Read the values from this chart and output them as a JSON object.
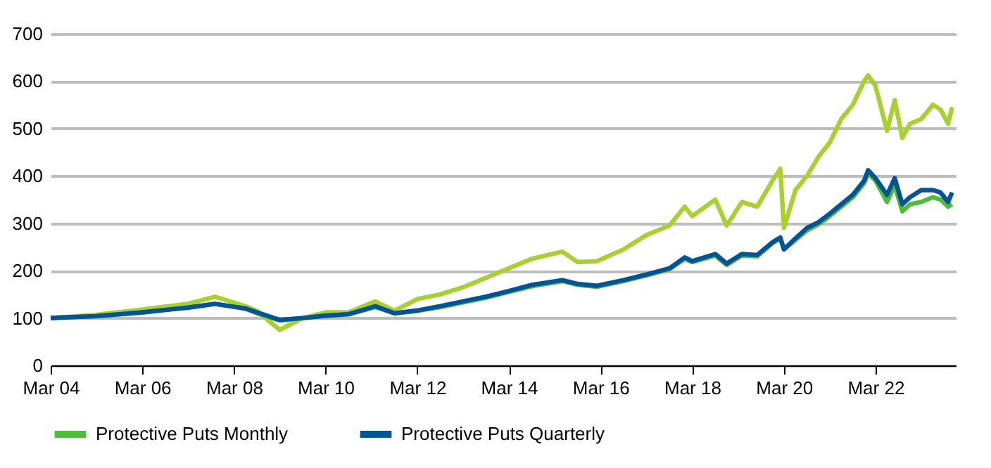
{
  "chart_data": {
    "type": "line",
    "x": [
      "2004-03",
      "2005-03",
      "2006-03",
      "2007-03",
      "2007-10",
      "2008-06",
      "2008-09",
      "2009-03",
      "2009-09",
      "2010-03",
      "2010-09",
      "2011-04",
      "2011-09",
      "2012-03",
      "2012-09",
      "2013-03",
      "2013-09",
      "2014-03",
      "2014-09",
      "2015-05",
      "2015-09",
      "2016-02",
      "2016-09",
      "2017-03",
      "2017-09",
      "2018-01",
      "2018-03",
      "2018-09",
      "2018-12",
      "2019-04",
      "2019-08",
      "2019-12",
      "2020-02",
      "2020-03",
      "2020-06",
      "2020-09",
      "2020-12",
      "2021-03",
      "2021-06",
      "2021-09",
      "2021-12",
      "2022-01",
      "2022-03",
      "2022-06",
      "2022-08",
      "2022-10",
      "2022-12",
      "2023-03",
      "2023-06",
      "2023-08",
      "2023-10",
      "2023-11"
    ],
    "series": [
      {
        "color": "#a8d032",
        "values": [
          100,
          107,
          118,
          130,
          145,
          125,
          115,
          75,
          100,
          112,
          112,
          135,
          115,
          140,
          150,
          165,
          185,
          205,
          225,
          240,
          218,
          220,
          245,
          275,
          295,
          335,
          315,
          350,
          295,
          345,
          335,
          390,
          415,
          290,
          370,
          400,
          440,
          470,
          520,
          550,
          600,
          612,
          590,
          495,
          560,
          480,
          510,
          520,
          550,
          540,
          510,
          545
        ]
      },
      {
        "name": "Protective Puts Monthly",
        "color": "#4fbc3b",
        "values": [
          100,
          104,
          112,
          122,
          130,
          120,
          110,
          95,
          100,
          105,
          108,
          123,
          110,
          115,
          123,
          133,
          143,
          155,
          167,
          178,
          170,
          166,
          178,
          190,
          203,
          225,
          218,
          232,
          212,
          232,
          230,
          258,
          268,
          245,
          265,
          285,
          298,
          315,
          335,
          355,
          385,
          405,
          390,
          345,
          380,
          325,
          340,
          345,
          355,
          350,
          335,
          340
        ]
      },
      {
        "name": "Protective Puts Quarterly",
        "color": "#005496",
        "values": [
          100,
          104,
          112,
          122,
          130,
          120,
          112,
          96,
          100,
          105,
          108,
          125,
          110,
          116,
          125,
          135,
          145,
          157,
          170,
          180,
          172,
          168,
          180,
          192,
          205,
          228,
          220,
          235,
          215,
          235,
          233,
          260,
          270,
          245,
          268,
          290,
          302,
          320,
          340,
          360,
          390,
          412,
          395,
          360,
          395,
          340,
          355,
          370,
          370,
          365,
          345,
          365
        ]
      }
    ],
    "xlim": [
      "2004-03",
      "2023-12"
    ],
    "xticks": [
      {
        "value": "2004-03",
        "label": "Mar 04"
      },
      {
        "value": "2006-03",
        "label": "Mar 06"
      },
      {
        "value": "2008-03",
        "label": "Mar 08"
      },
      {
        "value": "2010-03",
        "label": "Mar 10"
      },
      {
        "value": "2012-03",
        "label": "Mar 12"
      },
      {
        "value": "2014-03",
        "label": "Mar 14"
      },
      {
        "value": "2016-03",
        "label": "Mar 16"
      },
      {
        "value": "2018-03",
        "label": "Mar 18"
      },
      {
        "value": "2020-03",
        "label": "Mar 20"
      },
      {
        "value": "2022-03",
        "label": "Mar 22"
      }
    ],
    "ylim": [
      0,
      700
    ],
    "yticks": [
      0,
      100,
      200,
      300,
      400,
      500,
      600,
      700
    ],
    "grid": "y",
    "legend": "bottom"
  }
}
